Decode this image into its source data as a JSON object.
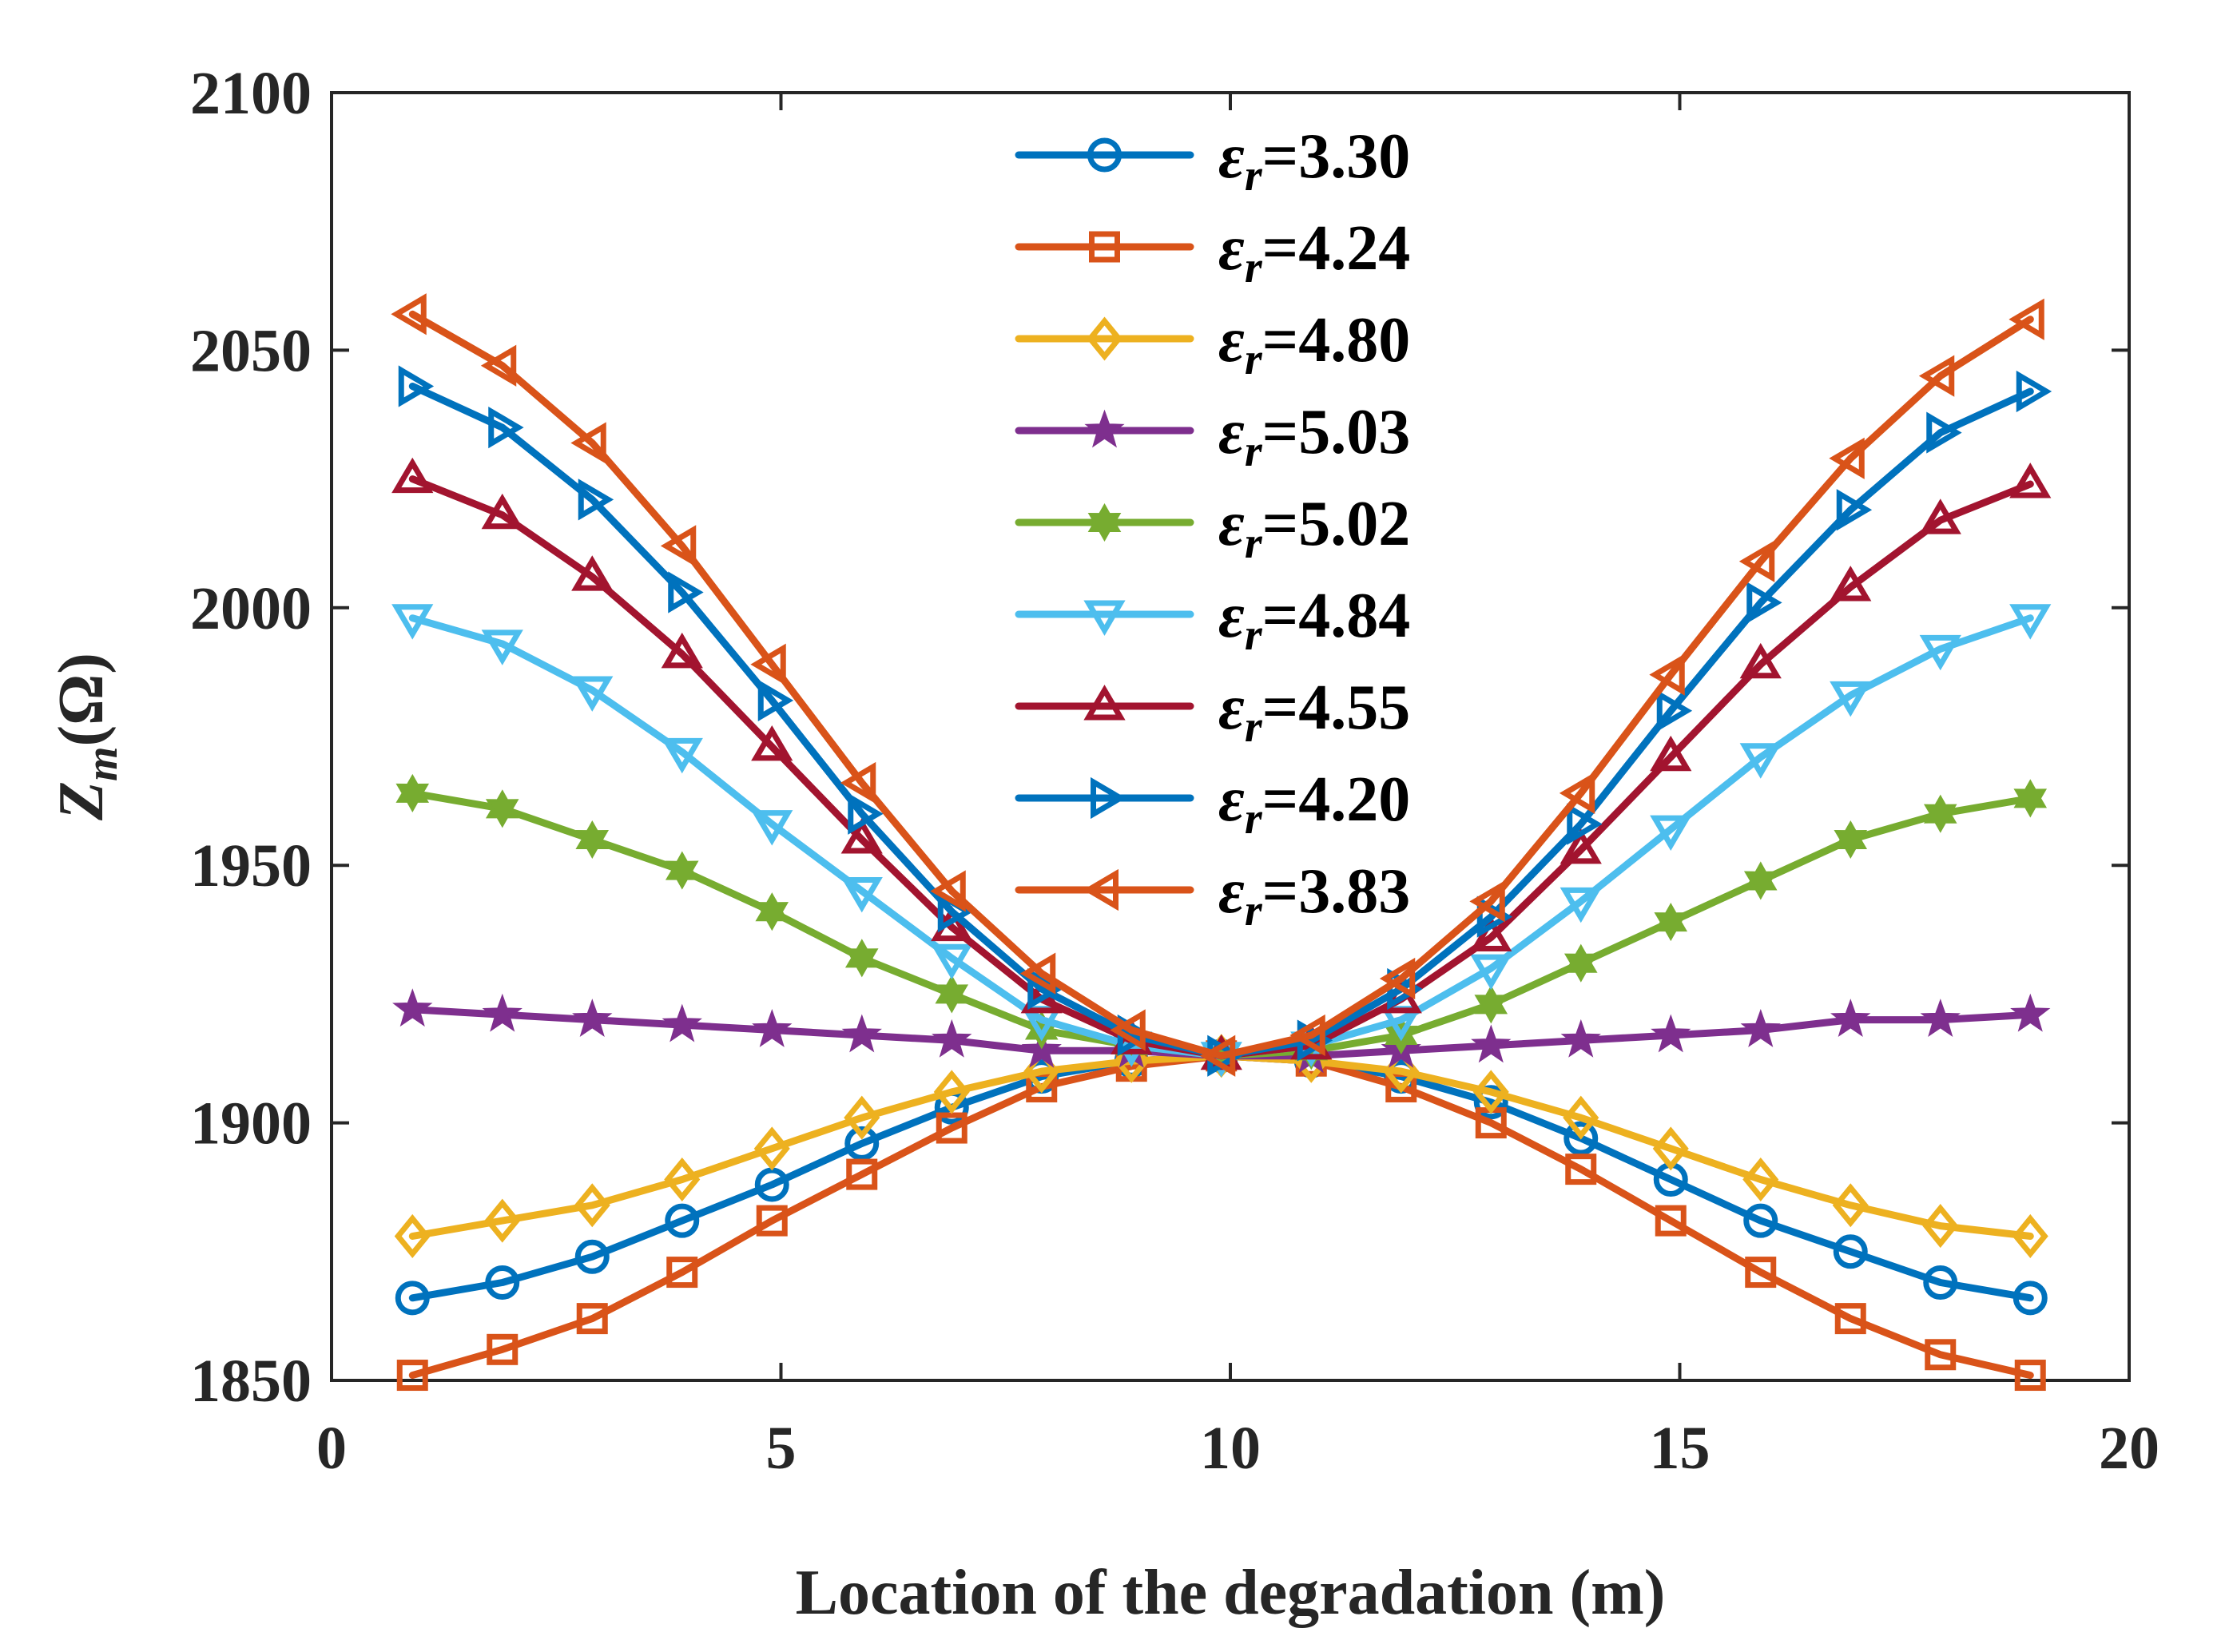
{
  "chart_data": {
    "type": "line",
    "title": "",
    "xlabel": "Location of the degradation (m)",
    "ylabel_main": "Z",
    "ylabel_sub": "m",
    "ylabel_unit": "(Ω)",
    "xlim": [
      0,
      20
    ],
    "ylim": [
      1850,
      2100
    ],
    "xticks": [
      0,
      5,
      10,
      15,
      20
    ],
    "yticks": [
      1850,
      1900,
      1950,
      2000,
      2050,
      2100
    ],
    "grid": false,
    "legend_position": "top-center",
    "x": [
      0.9,
      1.9,
      2.9,
      3.9,
      4.9,
      5.9,
      6.9,
      7.9,
      8.9,
      9.9,
      10.9,
      11.9,
      12.9,
      13.9,
      14.9,
      15.9,
      16.9,
      17.9,
      18.9
    ],
    "series": [
      {
        "symbol": "ε",
        "sub": "r",
        "value": "=3.30",
        "color": "#0072BD",
        "marker": "circle",
        "values": [
          1866,
          1869,
          1874,
          1881,
          1888,
          1896,
          1903,
          1909,
          1912,
          1913,
          1912,
          1909,
          1904,
          1897,
          1889,
          1881,
          1875,
          1869,
          1866
        ]
      },
      {
        "symbol": "ε",
        "sub": "r",
        "value": "=4.24",
        "color": "#D95319",
        "marker": "square",
        "values": [
          1851,
          1856,
          1862,
          1871,
          1881,
          1890,
          1899,
          1907,
          1911,
          1913,
          1912,
          1907,
          1900,
          1891,
          1881,
          1871,
          1862,
          1855,
          1851
        ]
      },
      {
        "symbol": "ε",
        "sub": "r",
        "value": "=4.80",
        "color": "#EDB120",
        "marker": "diamond",
        "values": [
          1878,
          1881,
          1884,
          1889,
          1895,
          1901,
          1906,
          1910,
          1912,
          1913,
          1912,
          1910,
          1906,
          1901,
          1895,
          1889,
          1884,
          1880,
          1878
        ]
      },
      {
        "symbol": "ε",
        "sub": "r",
        "value": "=5.03",
        "color": "#7E2F8E",
        "marker": "star",
        "values": [
          1922,
          1921,
          1920,
          1919,
          1918,
          1917,
          1916,
          1914,
          1914,
          1913,
          1913,
          1914,
          1915,
          1916,
          1917,
          1918,
          1920,
          1920,
          1921
        ]
      },
      {
        "symbol": "ε",
        "sub": "r",
        "value": "=5.02",
        "color": "#77AC30",
        "marker": "hexagram",
        "values": [
          1964,
          1961,
          1955,
          1949,
          1941,
          1932,
          1925,
          1918,
          1915,
          1913,
          1914,
          1917,
          1923,
          1931,
          1939,
          1947,
          1955,
          1960,
          1963
        ]
      },
      {
        "symbol": "ε",
        "sub": "r",
        "value": "=4.84",
        "color": "#4DBEEE",
        "marker": "triangle-down",
        "values": [
          1998,
          1993,
          1984,
          1972,
          1958,
          1945,
          1932,
          1920,
          1915,
          1913,
          1915,
          1920,
          1930,
          1943,
          1957,
          1971,
          1983,
          1992,
          1998
        ]
      },
      {
        "symbol": "ε",
        "sub": "r",
        "value": "=4.55",
        "color": "#A2142F",
        "marker": "triangle-up",
        "values": [
          2025,
          2018,
          2006,
          1991,
          1973,
          1955,
          1938,
          1924,
          1916,
          1913,
          1915,
          1924,
          1936,
          1953,
          1971,
          1989,
          2004,
          2017,
          2024
        ]
      },
      {
        "symbol": "ε",
        "sub": "r",
        "value": "=4.20",
        "color": "#0072BD",
        "marker": "triangle-right",
        "values": [
          2043,
          2035,
          2021,
          2003,
          1982,
          1960,
          1941,
          1926,
          1917,
          1913,
          1916,
          1926,
          1940,
          1958,
          1980,
          2001,
          2019,
          2034,
          2042
        ]
      },
      {
        "symbol": "ε",
        "sub": "r",
        "value": "=3.83",
        "color": "#D95319",
        "marker": "triangle-left",
        "values": [
          2057,
          2047,
          2032,
          2012,
          1989,
          1966,
          1945,
          1929,
          1918,
          1913,
          1917,
          1928,
          1943,
          1964,
          1987,
          2009,
          2029,
          2045,
          2056
        ]
      }
    ]
  }
}
